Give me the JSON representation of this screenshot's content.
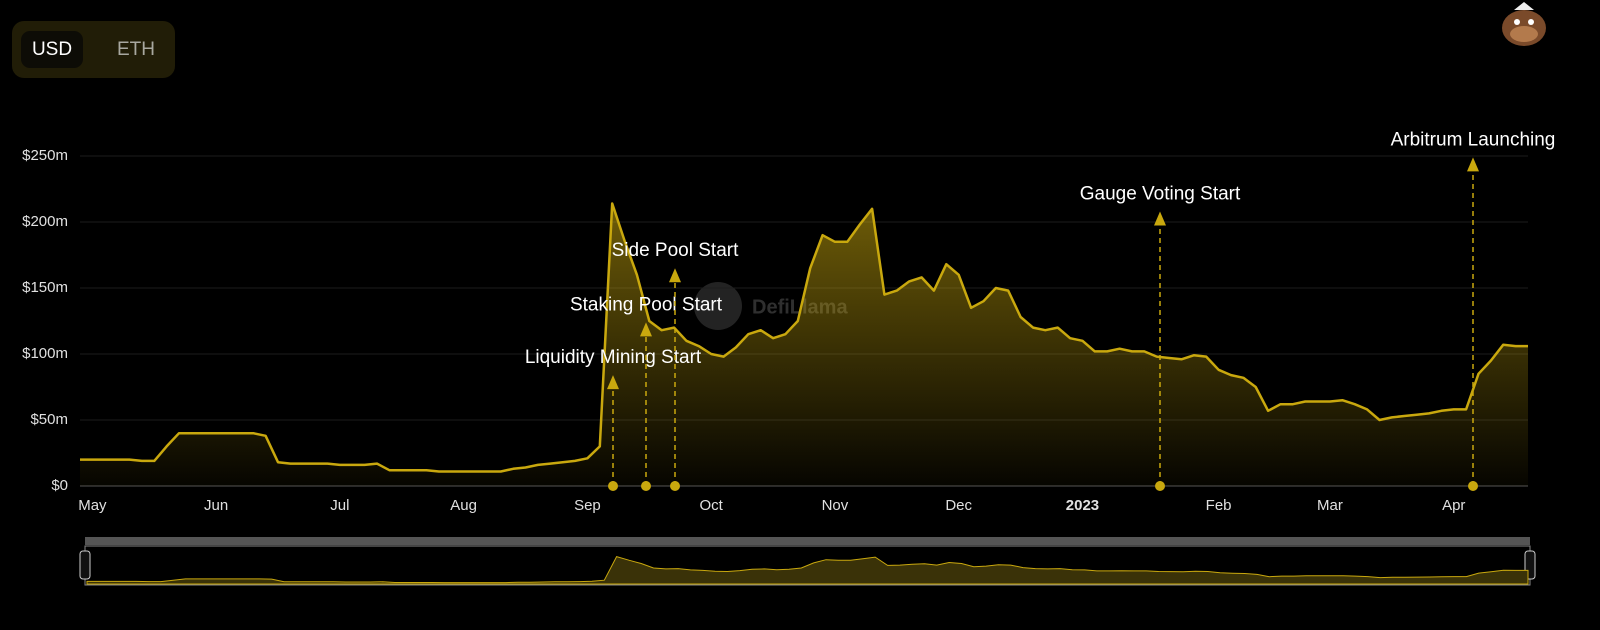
{
  "toggle": {
    "options": [
      "USD",
      "ETH"
    ]
  },
  "watermark": "DefiLlama",
  "chart_data": {
    "type": "area",
    "color": "#c9a80e",
    "grid": true,
    "categories": [
      null,
      "May",
      null,
      null,
      null,
      null,
      null,
      null,
      null,
      null,
      null,
      "Jun",
      null,
      null,
      null,
      null,
      null,
      null,
      null,
      null,
      null,
      "Jul",
      null,
      null,
      null,
      null,
      null,
      null,
      null,
      null,
      null,
      "Aug",
      null,
      null,
      null,
      null,
      null,
      null,
      null,
      null,
      null,
      "Sep",
      null,
      null,
      null,
      null,
      null,
      null,
      null,
      null,
      null,
      "Oct",
      null,
      null,
      null,
      null,
      null,
      null,
      null,
      null,
      null,
      "Nov",
      null,
      null,
      null,
      null,
      null,
      null,
      null,
      null,
      null,
      "Dec",
      null,
      null,
      null,
      null,
      null,
      null,
      null,
      null,
      null,
      "2023",
      null,
      null,
      null,
      null,
      null,
      null,
      null,
      null,
      null,
      null,
      "Feb",
      null,
      null,
      null,
      null,
      null,
      null,
      null,
      null,
      "Mar",
      null,
      null,
      null,
      null,
      null,
      null,
      null,
      null,
      null,
      "Apr",
      null,
      null,
      null,
      null,
      null,
      null
    ],
    "values": [
      20,
      20,
      20,
      20,
      20,
      19,
      19,
      30,
      40,
      40,
      40,
      40,
      40,
      40,
      40,
      38,
      18,
      17,
      17,
      17,
      17,
      16,
      16,
      16,
      17,
      12,
      12,
      12,
      12,
      11,
      11,
      11,
      11,
      11,
      11,
      13,
      14,
      16,
      17,
      18,
      19,
      21,
      30,
      214,
      186,
      160,
      125,
      118,
      120,
      110,
      106,
      100,
      98,
      105,
      115,
      118,
      112,
      115,
      125,
      165,
      190,
      185,
      185,
      198,
      210,
      145,
      148,
      155,
      158,
      148,
      168,
      160,
      135,
      140,
      150,
      148,
      128,
      120,
      118,
      120,
      112,
      110,
      102,
      102,
      104,
      102,
      102,
      98,
      97,
      96,
      99,
      98,
      88,
      84,
      82,
      75,
      57,
      62,
      62,
      64,
      64,
      64,
      65,
      62,
      58,
      50,
      52,
      53,
      54,
      55,
      57,
      58,
      58,
      85,
      95,
      107,
      106,
      106
    ],
    "ylim": [
      0,
      250
    ],
    "yticks": [
      {
        "value": 0,
        "label": "$0"
      },
      {
        "value": 50,
        "label": "$50m"
      },
      {
        "value": 100,
        "label": "$100m"
      },
      {
        "value": 150,
        "label": "$150m"
      },
      {
        "value": 200,
        "label": "$200m"
      },
      {
        "value": 250,
        "label": "$250m"
      }
    ],
    "annotations": [
      {
        "text": "Liquidity Mining Start",
        "y": 84
      },
      {
        "text": "Staking Pool Start",
        "y": 124
      },
      {
        "text": "Side Pool Start",
        "y": 165
      },
      {
        "text": "Gauge Voting Start",
        "y": 208
      },
      {
        "text": "Arbitrum Launching",
        "y": 249
      }
    ]
  }
}
